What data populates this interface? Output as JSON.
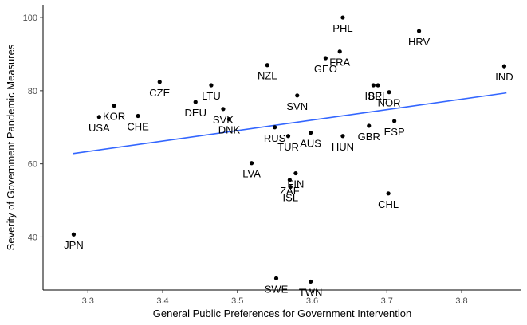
{
  "chart_data": {
    "type": "scatter",
    "title": "",
    "xlabel": "General Public Preferences for Government Intervention",
    "ylabel": "Severity of Government Pandemic Measures",
    "xlim": [
      3.24,
      3.88
    ],
    "ylim": [
      25.5,
      103.5
    ],
    "x_ticks": [
      3.3,
      3.4,
      3.5,
      3.6,
      3.7,
      3.8
    ],
    "x_tick_labels": [
      "3.3",
      "3.4",
      "3.5",
      "3.6",
      "3.7",
      "3.8"
    ],
    "y_ticks": [
      40,
      60,
      80,
      100
    ],
    "y_tick_labels": [
      "40",
      "60",
      "80",
      "100"
    ],
    "grid": false,
    "legend": "none",
    "trend_line": {
      "x": [
        3.28,
        3.86
      ],
      "y": [
        62.8,
        79.4
      ],
      "color": "#3366ff"
    },
    "point_color": "#000000",
    "points": [
      {
        "label": "PHL",
        "x": 3.641,
        "y": 100.0
      },
      {
        "label": "HRV",
        "x": 3.743,
        "y": 96.3
      },
      {
        "label": "FRA",
        "x": 3.637,
        "y": 90.7
      },
      {
        "label": "GEO",
        "x": 3.618,
        "y": 88.9
      },
      {
        "label": "NZL",
        "x": 3.54,
        "y": 87.0
      },
      {
        "label": "IND",
        "x": 3.857,
        "y": 86.7
      },
      {
        "label": "CZE",
        "x": 3.396,
        "y": 82.4
      },
      {
        "label": "LTU",
        "x": 3.465,
        "y": 81.5
      },
      {
        "label": "ISR",
        "x": 3.682,
        "y": 81.5
      },
      {
        "label": "BEL",
        "x": 3.688,
        "y": 81.5
      },
      {
        "label": "NOR",
        "x": 3.703,
        "y": 79.6
      },
      {
        "label": "SVN",
        "x": 3.58,
        "y": 78.7
      },
      {
        "label": "DEU",
        "x": 3.444,
        "y": 76.9
      },
      {
        "label": "KOR",
        "x": 3.335,
        "y": 75.9
      },
      {
        "label": "SVK",
        "x": 3.481,
        "y": 75.0
      },
      {
        "label": "CHE",
        "x": 3.367,
        "y": 73.1
      },
      {
        "label": "USA",
        "x": 3.315,
        "y": 72.8
      },
      {
        "label": "DNK",
        "x": 3.489,
        "y": 72.2
      },
      {
        "label": "ESP",
        "x": 3.71,
        "y": 71.7
      },
      {
        "label": "RUS",
        "x": 3.55,
        "y": 70.0
      },
      {
        "label": "GBR",
        "x": 3.676,
        "y": 70.4
      },
      {
        "label": "AUS",
        "x": 3.598,
        "y": 68.5
      },
      {
        "label": "TUR",
        "x": 3.568,
        "y": 67.6
      },
      {
        "label": "HUN",
        "x": 3.641,
        "y": 67.6
      },
      {
        "label": "LVA",
        "x": 3.519,
        "y": 60.2
      },
      {
        "label": "FIN",
        "x": 3.578,
        "y": 57.4
      },
      {
        "label": "ZAF",
        "x": 3.57,
        "y": 55.6
      },
      {
        "label": "ISL",
        "x": 3.571,
        "y": 53.7
      },
      {
        "label": "CHL",
        "x": 3.702,
        "y": 51.9
      },
      {
        "label": "JPN",
        "x": 3.281,
        "y": 40.7
      },
      {
        "label": "SWE",
        "x": 3.552,
        "y": 28.7
      },
      {
        "label": "TWN",
        "x": 3.598,
        "y": 27.8
      }
    ]
  }
}
